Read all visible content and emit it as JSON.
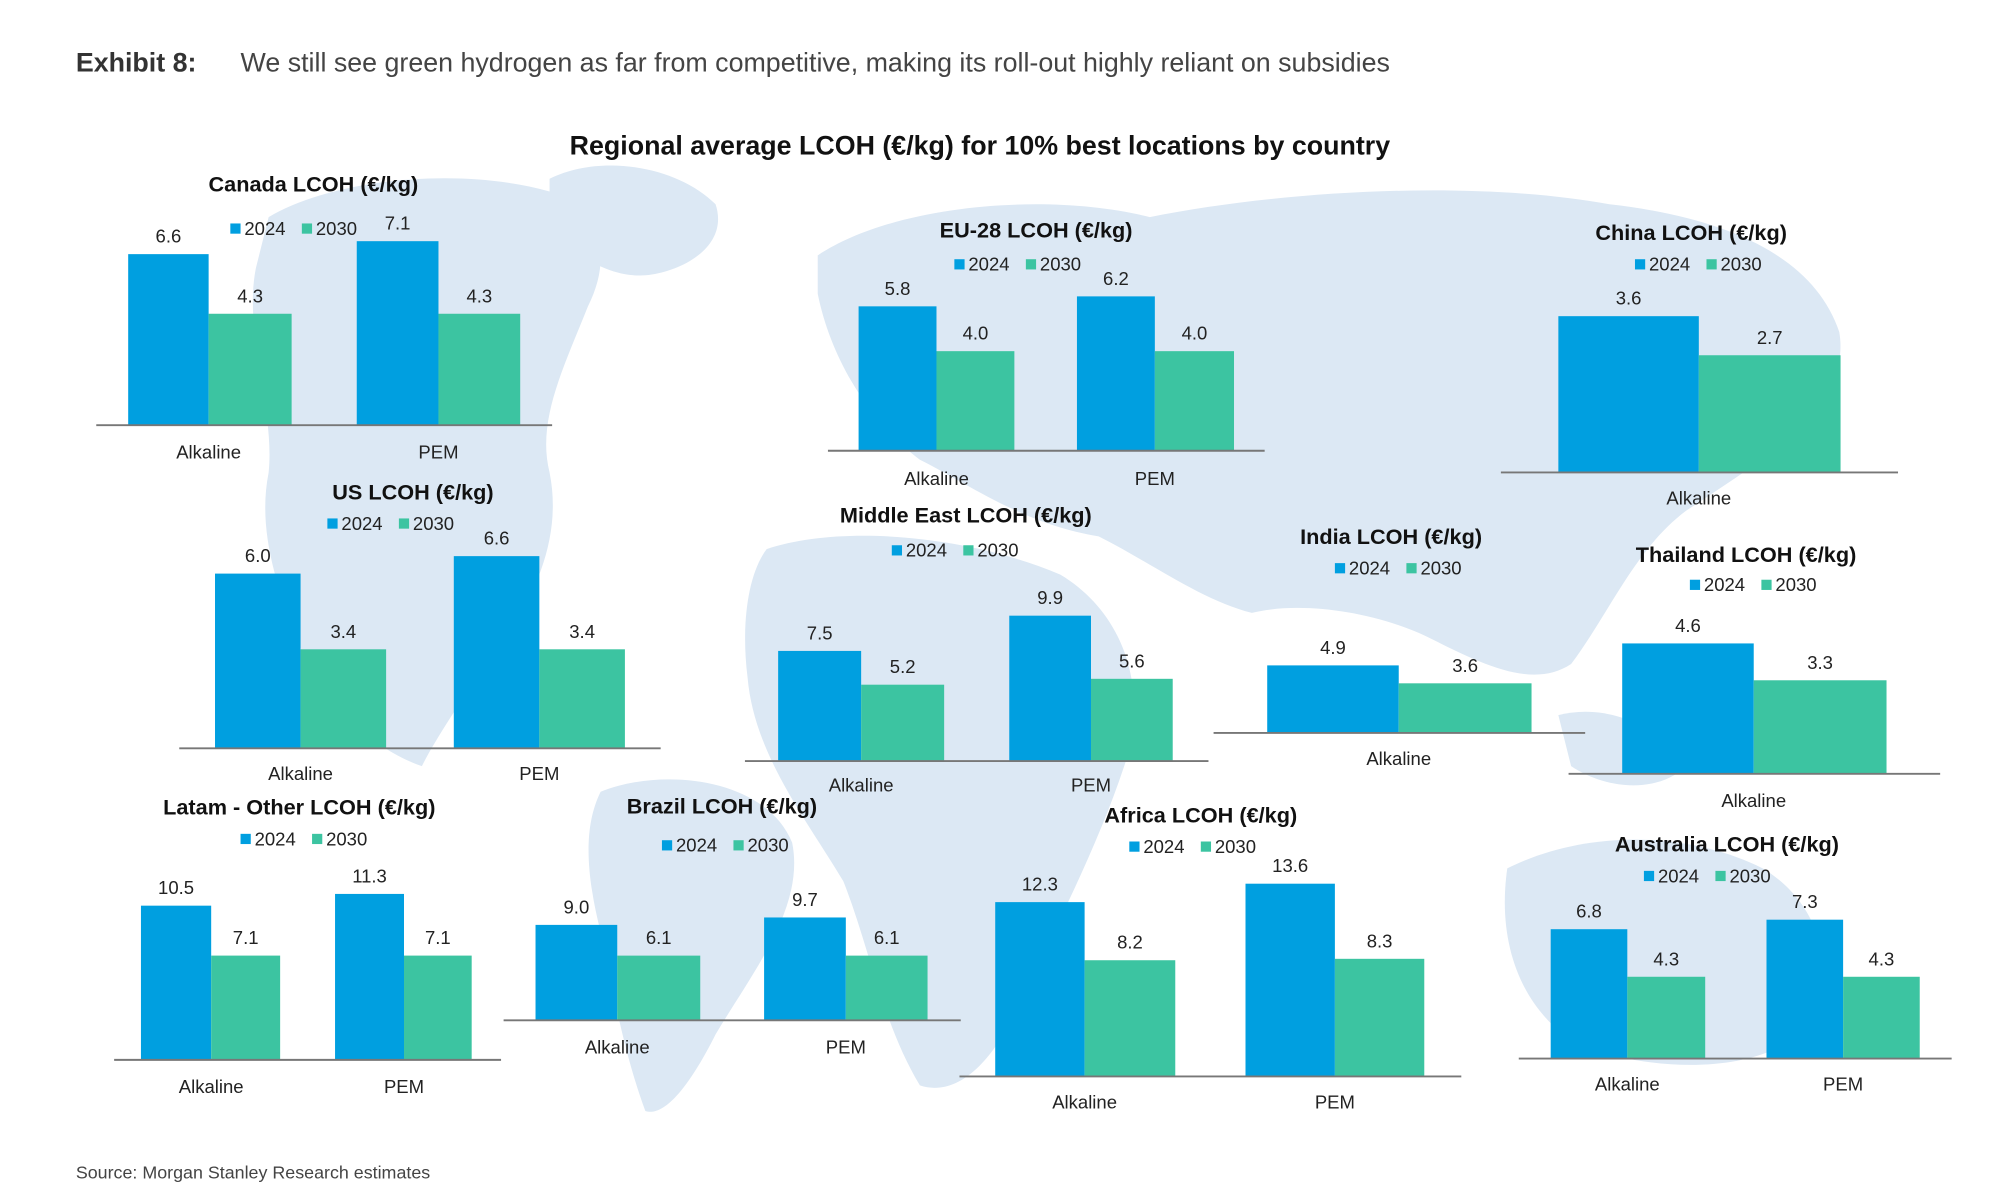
{
  "header": {
    "exhibit_label": "Exhibit 8:",
    "exhibit_title": "We still see green hydrogen as far from competitive, making its roll-out highly reliant on subsidies"
  },
  "main_title": "Regional average LCOH (€/kg) for 10% best locations by country",
  "source": "Source: Morgan Stanley Research estimates",
  "colors": {
    "2024": "#009fe0",
    "2030": "#3cc4a1",
    "map": "#dce8f4",
    "axis": "#777777"
  },
  "chart_data": [
    {
      "type": "bar",
      "id": "canada",
      "title": "Canada LCOH (€/kg)",
      "categories": [
        "Alkaline",
        "PEM"
      ],
      "series": [
        {
          "name": "2024",
          "values": [
            6.6,
            7.1
          ]
        },
        {
          "name": "2030",
          "values": [
            4.3,
            4.3
          ]
        }
      ]
    },
    {
      "type": "bar",
      "id": "us",
      "title": "US LCOH (€/kg)",
      "categories": [
        "Alkaline",
        "PEM"
      ],
      "series": [
        {
          "name": "2024",
          "values": [
            6.0,
            6.6
          ]
        },
        {
          "name": "2030",
          "values": [
            3.4,
            3.4
          ]
        }
      ]
    },
    {
      "type": "bar",
      "id": "eu28",
      "title": "EU-28 LCOH (€/kg)",
      "categories": [
        "Alkaline",
        "PEM"
      ],
      "series": [
        {
          "name": "2024",
          "values": [
            5.8,
            6.2
          ]
        },
        {
          "name": "2030",
          "values": [
            4.0,
            4.0
          ]
        }
      ]
    },
    {
      "type": "bar",
      "id": "china",
      "title": "China LCOH (€/kg)",
      "categories": [
        "Alkaline"
      ],
      "series": [
        {
          "name": "2024",
          "values": [
            3.6
          ]
        },
        {
          "name": "2030",
          "values": [
            2.7
          ]
        }
      ]
    },
    {
      "type": "bar",
      "id": "middle-east",
      "title": "Middle East LCOH (€/kg)",
      "categories": [
        "Alkaline",
        "PEM"
      ],
      "series": [
        {
          "name": "2024",
          "values": [
            7.5,
            9.9
          ]
        },
        {
          "name": "2030",
          "values": [
            5.2,
            5.6
          ]
        }
      ]
    },
    {
      "type": "bar",
      "id": "india",
      "title": "India LCOH (€/kg)",
      "categories": [
        "Alkaline"
      ],
      "series": [
        {
          "name": "2024",
          "values": [
            4.9
          ]
        },
        {
          "name": "2030",
          "values": [
            3.6
          ]
        }
      ]
    },
    {
      "type": "bar",
      "id": "thailand",
      "title": "Thailand LCOH (€/kg)",
      "categories": [
        "Alkaline"
      ],
      "series": [
        {
          "name": "2024",
          "values": [
            4.6
          ]
        },
        {
          "name": "2030",
          "values": [
            3.3
          ]
        }
      ]
    },
    {
      "type": "bar",
      "id": "latam-other",
      "title": "Latam - Other LCOH (€/kg)",
      "categories": [
        "Alkaline",
        "PEM"
      ],
      "series": [
        {
          "name": "2024",
          "values": [
            10.5,
            11.3
          ]
        },
        {
          "name": "2030",
          "values": [
            7.1,
            7.1
          ]
        }
      ]
    },
    {
      "type": "bar",
      "id": "brazil",
      "title": "Brazil LCOH (€/kg)",
      "categories": [
        "Alkaline",
        "PEM"
      ],
      "series": [
        {
          "name": "2024",
          "values": [
            9.0,
            9.7
          ]
        },
        {
          "name": "2030",
          "values": [
            6.1,
            6.1
          ]
        }
      ]
    },
    {
      "type": "bar",
      "id": "africa",
      "title": "Africa LCOH (€/kg)",
      "categories": [
        "Alkaline",
        "PEM"
      ],
      "series": [
        {
          "name": "2024",
          "values": [
            12.3,
            13.6
          ]
        },
        {
          "name": "2030",
          "values": [
            8.2,
            8.3
          ]
        }
      ]
    },
    {
      "type": "bar",
      "id": "australia",
      "title": "Australia LCOH (€/kg)",
      "categories": [
        "Alkaline",
        "PEM"
      ],
      "series": [
        {
          "name": "2024",
          "values": [
            6.8,
            7.3
          ]
        },
        {
          "name": "2030",
          "values": [
            4.3,
            4.3
          ]
        }
      ]
    }
  ]
}
